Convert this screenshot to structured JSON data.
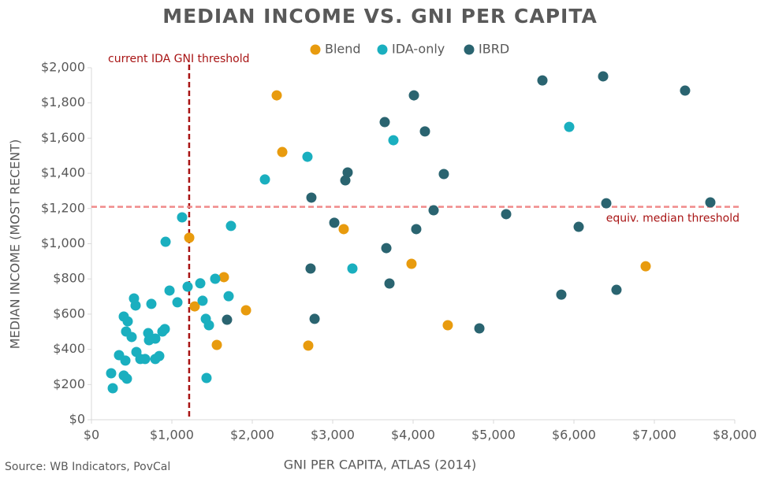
{
  "chart_data": {
    "type": "scatter",
    "title": "MEDIAN INCOME VS. GNI PER CAPITA",
    "x_label": "GNI PER CAPITA, ATLAS (2014)",
    "y_label": "MEDIAN INCOME (MOST RECENT)",
    "source": "Source: WB Indicators, PovCal",
    "xlim": [
      0,
      8000
    ],
    "ylim": [
      0,
      2000
    ],
    "xticks": [
      {
        "value": 0,
        "label": "$0"
      },
      {
        "value": 1000,
        "label": "$1,000"
      },
      {
        "value": 2000,
        "label": "$2,000"
      },
      {
        "value": 3000,
        "label": "$3,000"
      },
      {
        "value": 4000,
        "label": "$4,000"
      },
      {
        "value": 5000,
        "label": "$5,000"
      },
      {
        "value": 6000,
        "label": "$6,000"
      },
      {
        "value": 7000,
        "label": "$7,000"
      },
      {
        "value": 8000,
        "label": "$8,000"
      }
    ],
    "yticks": [
      {
        "value": 0,
        "label": "$0"
      },
      {
        "value": 200,
        "label": "$200"
      },
      {
        "value": 400,
        "label": "$400"
      },
      {
        "value": 600,
        "label": "$600"
      },
      {
        "value": 800,
        "label": "$800"
      },
      {
        "value": 1000,
        "label": "$1,000"
      },
      {
        "value": 1200,
        "label": "$1,200"
      },
      {
        "value": 1400,
        "label": "$1,400"
      },
      {
        "value": 1600,
        "label": "$1,600"
      },
      {
        "value": 1800,
        "label": "$1,800"
      },
      {
        "value": 2000,
        "label": "$2,000"
      }
    ],
    "legend": "top",
    "reference_lines": [
      {
        "axis": "x",
        "value": 1215,
        "label": "current IDA GNI threshold",
        "color": "#a81414"
      },
      {
        "axis": "y",
        "value": 1210,
        "label": "equiv. median threshold",
        "color": "#f08a8a"
      }
    ],
    "series": [
      {
        "name": "Blend",
        "color": "#e89b0e",
        "x": [
          2304,
          2373,
          1216,
          3137,
          1647,
          1284,
          1922,
          1559,
          2696,
          3980,
          4431,
          6892
        ],
        "values": [
          1843,
          1521,
          1034,
          1083,
          810,
          644,
          622,
          425,
          421,
          886,
          537,
          872
        ]
      },
      {
        "name": "IDA-only",
        "color": "#1aafbf",
        "x": [
          2686,
          2157,
          3755,
          5941,
          1127,
          1735,
          922,
          3245,
          971,
          1196,
          1353,
          1539,
          1706,
          1382,
          1069,
          745,
          529,
          549,
          402,
          451,
          431,
          500,
          706,
          716,
          794,
          882,
          912,
          1422,
          1461,
          559,
          608,
          667,
          794,
          843,
          343,
          422,
          245,
          402,
          441,
          265,
          1431
        ],
        "values": [
          1494,
          1365,
          1588,
          1664,
          1150,
          1101,
          1011,
          859,
          734,
          756,
          775,
          801,
          702,
          676,
          667,
          658,
          689,
          649,
          586,
          559,
          501,
          470,
          492,
          452,
          461,
          501,
          515,
          573,
          537,
          385,
          345,
          345,
          345,
          362,
          367,
          336,
          264,
          251,
          233,
          179,
          237
        ]
      },
      {
        "name": "IBRD",
        "color": "#2a6470",
        "x": [
          3647,
          4010,
          4147,
          5608,
          6363,
          7382,
          3186,
          3157,
          4382,
          2735,
          4255,
          5157,
          6402,
          7696,
          3020,
          4039,
          6059,
          3667,
          2725,
          3706,
          6529,
          5843,
          1686,
          2775,
          4824
        ],
        "values": [
          1691,
          1843,
          1638,
          1928,
          1951,
          1870,
          1405,
          1360,
          1396,
          1262,
          1190,
          1168,
          1230,
          1235,
          1119,
          1083,
          1096,
          975,
          859,
          774,
          738,
          711,
          568,
          573,
          519
        ]
      }
    ]
  }
}
